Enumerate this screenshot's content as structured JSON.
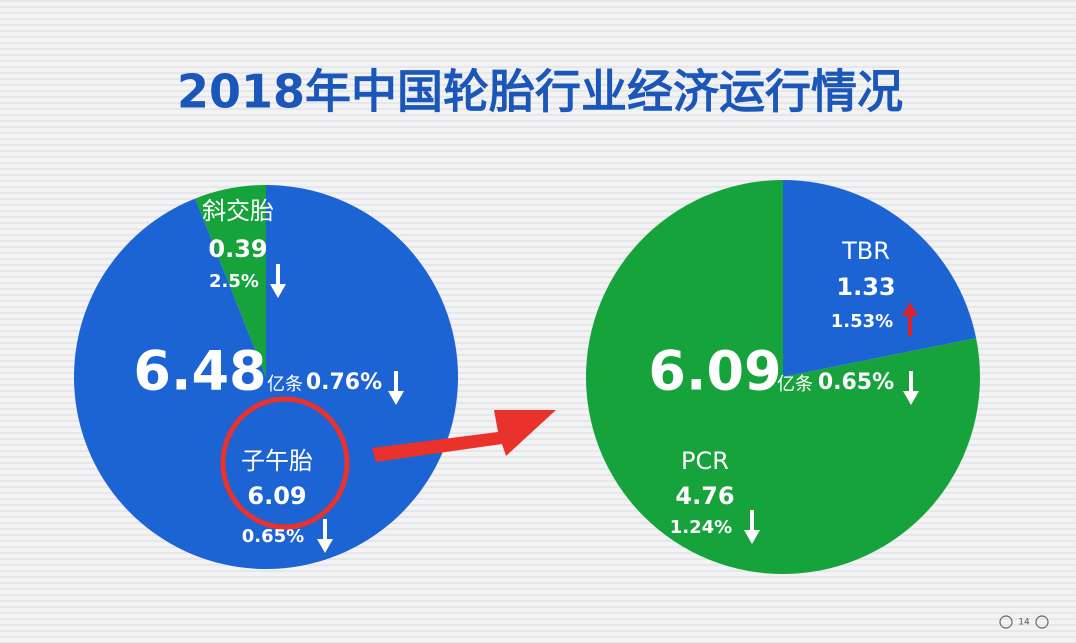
{
  "title": "2018年中国轮胎行业经济运行情况",
  "page_number": "14",
  "chart_data": [
    {
      "type": "pie",
      "categories": [
        "斜交胎",
        "子午胎"
      ],
      "values": [
        0.39,
        6.09
      ],
      "colors": [
        "#17a33b",
        "#1c63d3"
      ],
      "changes": [
        "2.5%",
        "0.65%"
      ],
      "change_directions": [
        "down",
        "down"
      ],
      "direction": "counterclockwise",
      "total": 6.48,
      "total_unit": "亿条",
      "total_change": "0.76%",
      "total_direction": "down"
    },
    {
      "type": "pie",
      "categories": [
        "TBR",
        "PCR"
      ],
      "values": [
        1.33,
        4.76
      ],
      "colors": [
        "#1c63d3",
        "#17a33b"
      ],
      "changes": [
        "1.53%",
        "1.24%"
      ],
      "change_directions": [
        "up",
        "down"
      ],
      "direction": "clockwise",
      "total": 6.09,
      "total_unit": "亿条",
      "total_change": "0.65%",
      "total_direction": "down"
    }
  ]
}
